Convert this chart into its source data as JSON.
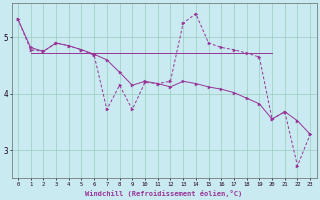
{
  "xlabel": "Windchill (Refroidissement éolien,°C)",
  "bg_color": "#c8eaf0",
  "grid_color": "#99ccbb",
  "line_color": "#993399",
  "xlim": [
    -0.5,
    23.5
  ],
  "ylim": [
    2.5,
    5.6
  ],
  "yticks": [
    3,
    4,
    5
  ],
  "xticks": [
    0,
    1,
    2,
    3,
    4,
    5,
    6,
    7,
    8,
    9,
    10,
    11,
    12,
    13,
    14,
    15,
    16,
    17,
    18,
    19,
    20,
    21,
    22,
    23
  ],
  "lineA_x": [
    0,
    1,
    2,
    3,
    4,
    5,
    6,
    7,
    8,
    9,
    10,
    11,
    12,
    13,
    14,
    15,
    16,
    17,
    18,
    19,
    20,
    21,
    22,
    23
  ],
  "lineA_y": [
    5.32,
    4.82,
    4.75,
    4.9,
    4.85,
    4.78,
    4.7,
    4.6,
    4.38,
    4.15,
    4.22,
    4.18,
    4.12,
    4.22,
    4.18,
    4.12,
    4.08,
    4.02,
    3.92,
    3.82,
    3.55,
    3.68,
    3.52,
    3.28
  ],
  "lineB_x": [
    0,
    1,
    2,
    3,
    4,
    5,
    6,
    7,
    8,
    9,
    10,
    11,
    12,
    13,
    14,
    15,
    16,
    17,
    18,
    19,
    20,
    21,
    22,
    23
  ],
  "lineB_y": [
    5.32,
    4.78,
    4.75,
    4.9,
    4.85,
    4.78,
    4.68,
    3.72,
    4.15,
    3.72,
    4.2,
    4.18,
    4.22,
    5.25,
    5.42,
    4.9,
    4.82,
    4.78,
    4.72,
    4.65,
    3.55,
    3.68,
    2.72,
    3.28
  ],
  "lineC_x": [
    1,
    2,
    3,
    4,
    5,
    6,
    7,
    8,
    9,
    10,
    11,
    12,
    13,
    14,
    15,
    16,
    17,
    18,
    19,
    20
  ],
  "lineC_y": [
    4.72,
    4.72,
    4.72,
    4.72,
    4.72,
    4.72,
    4.72,
    4.72,
    4.72,
    4.72,
    4.72,
    4.72,
    4.72,
    4.72,
    4.72,
    4.72,
    4.72,
    4.72,
    4.72,
    4.72
  ]
}
